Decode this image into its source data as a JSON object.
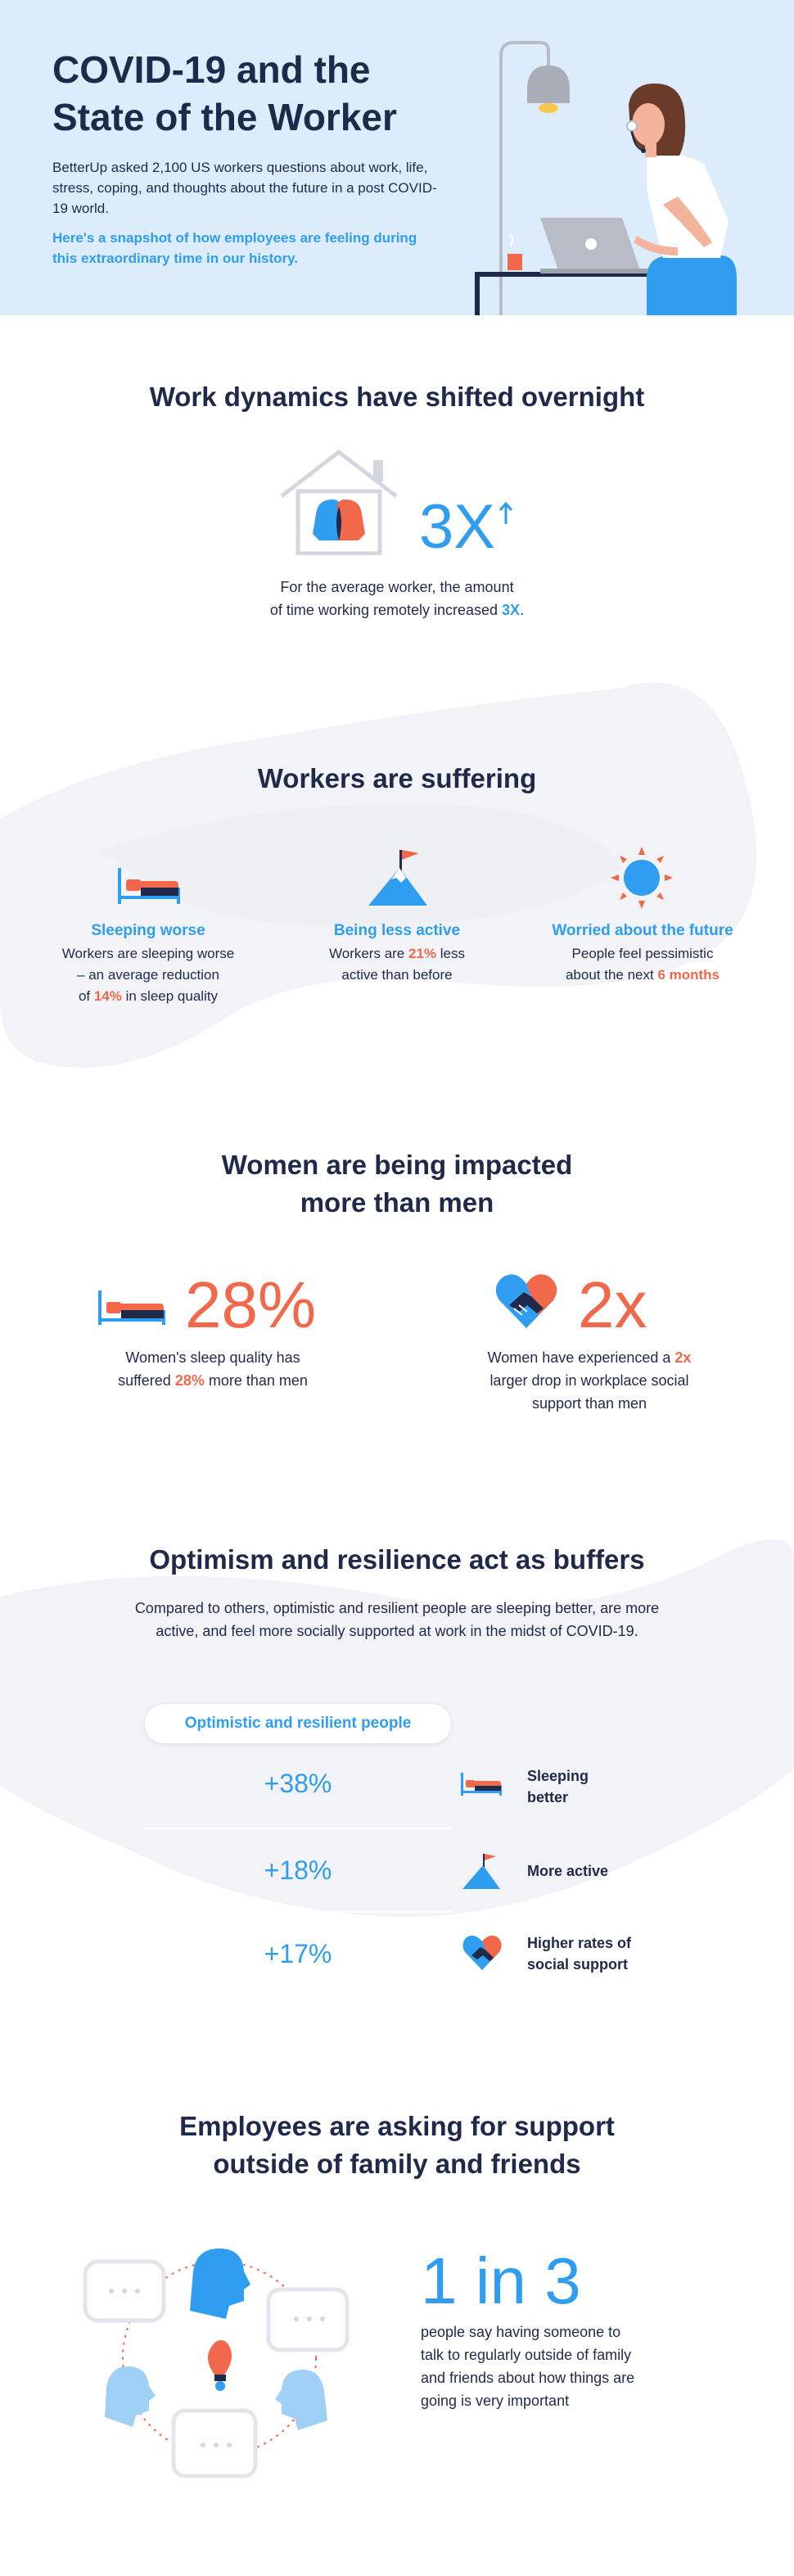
{
  "hero": {
    "title_line1": "COVID-19 and the",
    "title_line2": "State of the Worker",
    "intro": "BetterUp asked 2,100 US workers questions about work, life, stress, coping, and thoughts about the future in a post COVID-19 world.",
    "highlight": "Here's a snapshot of how employees are feeling during this extraordinary time in our history."
  },
  "work_dynamics": {
    "title": "Work dynamics have shifted overnight",
    "stat": "3X",
    "text_line1": "For the average worker, the amount",
    "text_line2_prefix": "of time working remotely increased ",
    "text_line2_highlight": "3X",
    "text_line2_suffix": "."
  },
  "suffering": {
    "title": "Workers are suffering",
    "items": [
      {
        "title": "Sleeping worse",
        "line1": "Workers are sleeping worse",
        "line2": "– an average reduction",
        "line3_prefix": "of ",
        "line3_highlight": "14%",
        "line3_suffix": " in sleep quality",
        "icon": "bed-icon"
      },
      {
        "title": "Being less active",
        "line1_prefix": "Workers are ",
        "line1_highlight": "21%",
        "line1_suffix": " less",
        "line2": "active than before",
        "icon": "mountain-flag-icon"
      },
      {
        "title": "Worried about the future",
        "line1": "People feel pessimistic",
        "line2_prefix": "about the next ",
        "line2_highlight": "6 months",
        "icon": "sun-icon"
      }
    ]
  },
  "women": {
    "title_line1": "Women are being impacted",
    "title_line2": "more than men",
    "stat1": "28%",
    "stat1_line1": "Women's sleep quality has",
    "stat1_line2_prefix": "suffered ",
    "stat1_line2_highlight": "28%",
    "stat1_line2_suffix": " more than men",
    "stat2": "2x",
    "stat2_line1_prefix": "Women have experienced a ",
    "stat2_line1_highlight": "2x",
    "stat2_line2": "larger drop in workplace social",
    "stat2_line3": "support than men"
  },
  "optimism": {
    "title": "Optimism and resilience act as buffers",
    "intro_line1": "Compared to others, optimistic and resilient people are sleeping better, are more",
    "intro_line2": "active, and feel more socially supported at work in the midst of COVID-19.",
    "pill": "Optimistic and resilient people",
    "rows": [
      {
        "value": "+38%",
        "label_line1": "Sleeping",
        "label_line2": "better"
      },
      {
        "value": "+18%",
        "label_line1": "More active",
        "label_line2": ""
      },
      {
        "value": "+17%",
        "label_line1": "Higher rates of",
        "label_line2": "social support"
      }
    ]
  },
  "support": {
    "title_line1": "Employees are asking for support",
    "title_line2": "outside of family and friends",
    "stat": "1 in 3",
    "line1": "people say having someone to",
    "line2": "talk to regularly outside of family",
    "line3": "and friends about how things are",
    "line4": "going is very important"
  },
  "colors": {
    "navy": "#1f2a4a",
    "blue": "#2f9df0",
    "coral": "#f2684a",
    "hero_bg": "#dcecfb",
    "blob": "#f2f3f6"
  }
}
